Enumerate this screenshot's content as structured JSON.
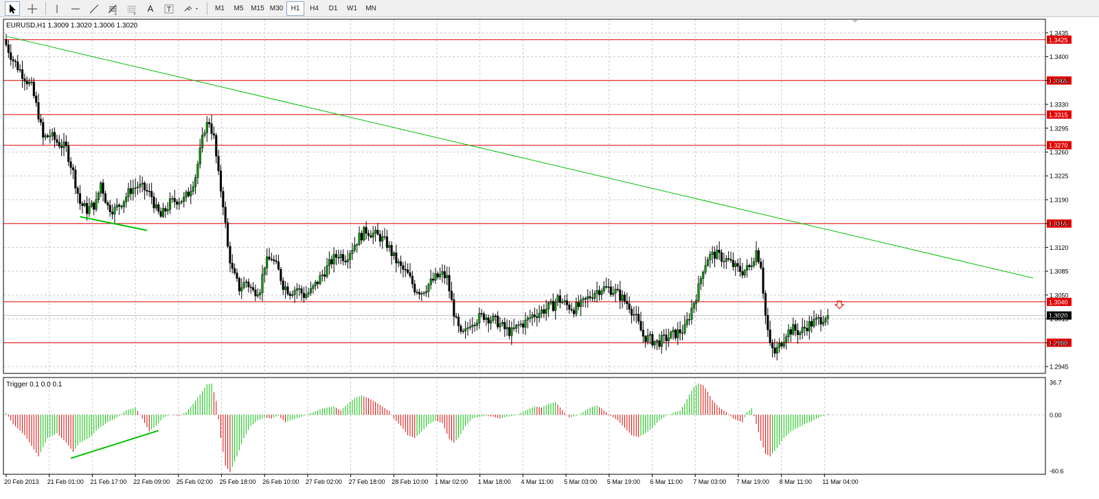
{
  "toolbar": {
    "tools": [
      "cursor-icon",
      "crosshair-icon",
      "vertical-line-icon",
      "horizontal-line-icon",
      "trendline-icon",
      "fibonacci-icon",
      "fibonacci-fan-icon",
      "text-icon",
      "text-label-icon",
      "arrows-menu-icon"
    ],
    "timeframes": [
      "M1",
      "M5",
      "M15",
      "M30",
      "H1",
      "H4",
      "D1",
      "W1",
      "MN"
    ],
    "active_timeframe": "H1"
  },
  "chart_data": {
    "type": "candlestick",
    "symbol_label": "EURUSD,H1  1.3009 1.3020 1.3006 1.3020",
    "ylim": [
      1.2935,
      1.3455
    ],
    "y_ticks": [
      "1.3435",
      "1.3400",
      "1.3365",
      "1.3330",
      "1.3295",
      "1.3260",
      "1.3225",
      "1.3190",
      "1.3155",
      "1.3120",
      "1.3085",
      "1.3050",
      "1.3015",
      "1.2980",
      "1.2945"
    ],
    "horizontal_levels": [
      {
        "value": 1.3425,
        "label": "1.3425"
      },
      {
        "value": 1.3365,
        "label": "1.3365"
      },
      {
        "value": 1.3315,
        "label": "1.3315"
      },
      {
        "value": 1.327,
        "label": "1.3270"
      },
      {
        "value": 1.3155,
        "label": "1.3155"
      },
      {
        "value": 1.304,
        "label": "1.3040"
      },
      {
        "value": 1.298,
        "label": "1.2980"
      }
    ],
    "current_price": {
      "value": 1.302,
      "label": "1.3020"
    },
    "x_labels": [
      "20 Feb 2013",
      "21 Feb 01:00",
      "21 Feb 17:00",
      "22 Feb 09:00",
      "25 Feb 02:00",
      "25 Feb 18:00",
      "26 Feb 10:00",
      "27 Feb 02:00",
      "27 Feb 18:00",
      "28 Feb 10:00",
      "1 Mar 02:00",
      "1 Mar 18:00",
      "4 Mar 11:00",
      "5 Mar 03:00",
      "5 Mar 19:00",
      "6 Mar 11:00",
      "7 Mar 03:00",
      "7 Mar 19:00",
      "8 Mar 11:00",
      "11 Mar 04:00"
    ],
    "price_path": [
      [
        0,
        1.3425
      ],
      [
        4,
        1.3395
      ],
      [
        8,
        1.3375
      ],
      [
        12,
        1.3355
      ],
      [
        15,
        1.3315
      ],
      [
        17,
        1.328
      ],
      [
        20,
        1.3285
      ],
      [
        23,
        1.3275
      ],
      [
        27,
        1.3265
      ],
      [
        30,
        1.323
      ],
      [
        33,
        1.3185
      ],
      [
        36,
        1.3175
      ],
      [
        40,
        1.3185
      ],
      [
        42,
        1.3215
      ],
      [
        45,
        1.318
      ],
      [
        48,
        1.3175
      ],
      [
        52,
        1.319
      ],
      [
        55,
        1.3205
      ],
      [
        58,
        1.321
      ],
      [
        61,
        1.3205
      ],
      [
        64,
        1.3195
      ],
      [
        66,
        1.3175
      ],
      [
        68,
        1.3165
      ],
      [
        70,
        1.3175
      ],
      [
        72,
        1.3185
      ],
      [
        75,
        1.319
      ],
      [
        78,
        1.319
      ],
      [
        80,
        1.32
      ],
      [
        83,
        1.3225
      ],
      [
        85,
        1.326
      ],
      [
        87,
        1.3295
      ],
      [
        89,
        1.3305
      ],
      [
        91,
        1.328
      ],
      [
        93,
        1.3225
      ],
      [
        95,
        1.3185
      ],
      [
        97,
        1.312
      ],
      [
        99,
        1.3085
      ],
      [
        102,
        1.306
      ],
      [
        105,
        1.307
      ],
      [
        108,
        1.3055
      ],
      [
        111,
        1.306
      ],
      [
        113,
        1.3095
      ],
      [
        116,
        1.3105
      ],
      [
        119,
        1.3085
      ],
      [
        121,
        1.3065
      ],
      [
        124,
        1.3055
      ],
      [
        127,
        1.306
      ],
      [
        130,
        1.305
      ],
      [
        133,
        1.3055
      ],
      [
        136,
        1.307
      ],
      [
        139,
        1.3085
      ],
      [
        142,
        1.31
      ],
      [
        145,
        1.311
      ],
      [
        148,
        1.3105
      ],
      [
        151,
        1.312
      ],
      [
        154,
        1.3135
      ],
      [
        157,
        1.3145
      ],
      [
        160,
        1.314
      ],
      [
        163,
        1.3135
      ],
      [
        166,
        1.3125
      ],
      [
        169,
        1.3105
      ],
      [
        172,
        1.309
      ],
      [
        175,
        1.308
      ],
      [
        178,
        1.306
      ],
      [
        181,
        1.3055
      ],
      [
        184,
        1.3065
      ],
      [
        187,
        1.3075
      ],
      [
        190,
        1.308
      ],
      [
        192,
        1.3075
      ],
      [
        194,
        1.304
      ],
      [
        196,
        1.301
      ],
      [
        198,
        1.299
      ],
      [
        200,
        1.2995
      ],
      [
        202,
        1.301
      ],
      [
        205,
        1.3015
      ],
      [
        208,
        1.302
      ],
      [
        211,
        1.3015
      ],
      [
        214,
        1.301
      ],
      [
        217,
        1.3
      ],
      [
        220,
        1.2995
      ],
      [
        223,
        1.3005
      ],
      [
        226,
        1.301
      ],
      [
        229,
        1.302
      ],
      [
        232,
        1.3025
      ],
      [
        235,
        1.303
      ],
      [
        238,
        1.3035
      ],
      [
        240,
        1.3045
      ],
      [
        242,
        1.304
      ],
      [
        244,
        1.3035
      ],
      [
        247,
        1.303
      ],
      [
        250,
        1.3035
      ],
      [
        253,
        1.3045
      ],
      [
        256,
        1.3055
      ],
      [
        259,
        1.306
      ],
      [
        262,
        1.306
      ],
      [
        265,
        1.3055
      ],
      [
        268,
        1.3045
      ],
      [
        271,
        1.3035
      ],
      [
        274,
        1.3015
      ],
      [
        277,
        1.299
      ],
      [
        280,
        1.2985
      ],
      [
        283,
        1.298
      ],
      [
        286,
        1.2985
      ],
      [
        289,
        1.299
      ],
      [
        292,
        1.2995
      ],
      [
        295,
        1.3
      ],
      [
        297,
        1.302
      ],
      [
        299,
        1.304
      ],
      [
        301,
        1.306
      ],
      [
        303,
        1.309
      ],
      [
        305,
        1.3105
      ],
      [
        308,
        1.311
      ],
      [
        311,
        1.3105
      ],
      [
        314,
        1.31
      ],
      [
        317,
        1.309
      ],
      [
        320,
        1.3085
      ],
      [
        323,
        1.309
      ],
      [
        326,
        1.3115
      ],
      [
        328,
        1.3095
      ],
      [
        330,
        1.302
      ],
      [
        332,
        1.2975
      ],
      [
        334,
        1.2965
      ],
      [
        336,
        1.2975
      ],
      [
        339,
        1.2995
      ],
      [
        342,
        1.3
      ],
      [
        345,
        1.2995
      ],
      [
        348,
        1.3005
      ],
      [
        351,
        1.301
      ],
      [
        354,
        1.3015
      ],
      [
        356,
        1.302
      ]
    ],
    "trendline": {
      "from": {
        "bar": 0,
        "price": 1.343
      },
      "to": {
        "bar": 445,
        "price": 1.3075
      }
    },
    "price_divergence_line": {
      "from": {
        "bar": 32,
        "price": 1.3165
      },
      "to": {
        "bar": 61,
        "price": 1.3145
      }
    },
    "sell_arrow": {
      "bar": 361,
      "price": 1.3035
    },
    "indicator": {
      "label": "Trigger 0.1 0.0 0.1",
      "ylim": [
        -60.6,
        36.7
      ],
      "y_ticks": [
        "36.7",
        "0.00",
        "-60.6"
      ],
      "values_path": [
        [
          0,
          2
        ],
        [
          3,
          -10
        ],
        [
          8,
          -22
        ],
        [
          14,
          -45
        ],
        [
          18,
          -25
        ],
        [
          22,
          -20
        ],
        [
          26,
          -30
        ],
        [
          29,
          -40
        ],
        [
          32,
          -30
        ],
        [
          36,
          -25
        ],
        [
          40,
          -15
        ],
        [
          44,
          -8
        ],
        [
          48,
          -3
        ],
        [
          52,
          5
        ],
        [
          56,
          8
        ],
        [
          59,
          -4
        ],
        [
          62,
          -18
        ],
        [
          65,
          -12
        ],
        [
          68,
          -3
        ],
        [
          71,
          0
        ],
        [
          75,
          -1
        ],
        [
          78,
          3
        ],
        [
          81,
          12
        ],
        [
          84,
          22
        ],
        [
          87,
          33
        ],
        [
          89,
          34
        ],
        [
          91,
          15
        ],
        [
          93,
          -25
        ],
        [
          95,
          -55
        ],
        [
          97,
          -62
        ],
        [
          100,
          -45
        ],
        [
          103,
          -25
        ],
        [
          106,
          -12
        ],
        [
          109,
          -6
        ],
        [
          112,
          -3
        ],
        [
          115,
          -4
        ],
        [
          118,
          -1
        ],
        [
          121,
          -8
        ],
        [
          124,
          -5
        ],
        [
          127,
          -3
        ],
        [
          130,
          0
        ],
        [
          133,
          3
        ],
        [
          136,
          6
        ],
        [
          139,
          8
        ],
        [
          142,
          9
        ],
        [
          145,
          5
        ],
        [
          148,
          12
        ],
        [
          151,
          18
        ],
        [
          154,
          21
        ],
        [
          157,
          18
        ],
        [
          160,
          14
        ],
        [
          163,
          9
        ],
        [
          166,
          4
        ],
        [
          168,
          -4
        ],
        [
          171,
          -12
        ],
        [
          174,
          -22
        ],
        [
          177,
          -25
        ],
        [
          180,
          -18
        ],
        [
          183,
          -10
        ],
        [
          186,
          -6
        ],
        [
          189,
          -9
        ],
        [
          192,
          -26
        ],
        [
          194,
          -30
        ],
        [
          196,
          -25
        ],
        [
          199,
          -12
        ],
        [
          202,
          -4
        ],
        [
          205,
          -2
        ],
        [
          208,
          -1
        ],
        [
          211,
          -2
        ],
        [
          214,
          -4
        ],
        [
          217,
          -2
        ],
        [
          220,
          -1
        ],
        [
          223,
          2
        ],
        [
          226,
          6
        ],
        [
          229,
          9
        ],
        [
          232,
          8
        ],
        [
          235,
          12
        ],
        [
          238,
          14
        ],
        [
          241,
          5
        ],
        [
          244,
          -3
        ],
        [
          247,
          -1
        ],
        [
          250,
          3
        ],
        [
          253,
          8
        ],
        [
          256,
          10
        ],
        [
          259,
          5
        ],
        [
          262,
          -1
        ],
        [
          265,
          -6
        ],
        [
          268,
          -14
        ],
        [
          271,
          -22
        ],
        [
          274,
          -24
        ],
        [
          277,
          -20
        ],
        [
          280,
          -14
        ],
        [
          283,
          -6
        ],
        [
          286,
          -1
        ],
        [
          289,
          2
        ],
        [
          292,
          5
        ],
        [
          294,
          12
        ],
        [
          296,
          22
        ],
        [
          298,
          30
        ],
        [
          300,
          34
        ],
        [
          302,
          32
        ],
        [
          304,
          25
        ],
        [
          306,
          16
        ],
        [
          309,
          8
        ],
        [
          312,
          3
        ],
        [
          315,
          -4
        ],
        [
          317,
          -6
        ],
        [
          319,
          -8
        ],
        [
          321,
          3
        ],
        [
          323,
          7
        ],
        [
          325,
          -10
        ],
        [
          327,
          -28
        ],
        [
          329,
          -42
        ],
        [
          331,
          -45
        ],
        [
          334,
          -36
        ],
        [
          337,
          -25
        ],
        [
          340,
          -18
        ],
        [
          343,
          -14
        ],
        [
          346,
          -10
        ],
        [
          349,
          -7
        ],
        [
          352,
          -3
        ],
        [
          355,
          0
        ],
        [
          356,
          1
        ]
      ]
    },
    "indicator_divergence_line": {
      "from": {
        "bar": 28,
        "value": -47
      },
      "to": {
        "bar": 66,
        "value": -17
      }
    }
  }
}
